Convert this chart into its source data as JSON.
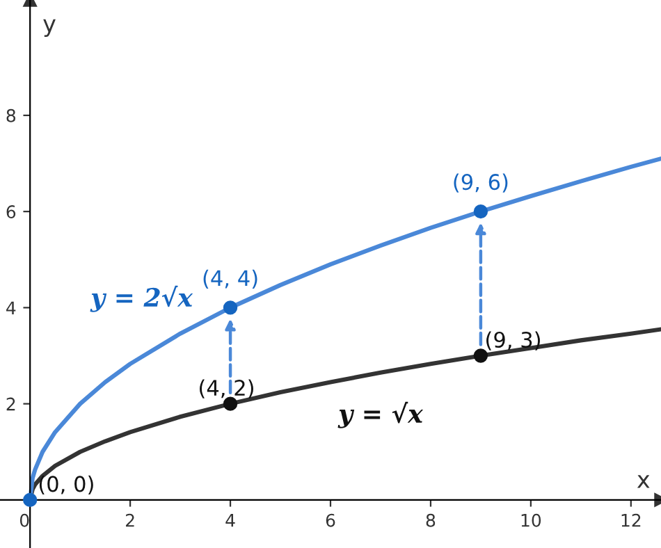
{
  "chart_data": {
    "type": "line",
    "xlabel": "x",
    "ylabel": "y",
    "xlim": [
      -0.6,
      12.6
    ],
    "ylim": [
      -1.0,
      10.4
    ],
    "xticks": [
      0,
      2,
      4,
      6,
      8,
      10,
      12
    ],
    "yticks": [
      {
        "value": 0,
        "label": null
      },
      2,
      4,
      6,
      8
    ],
    "grid": false,
    "series": [
      {
        "name": "y = √x",
        "color": "#333333",
        "x": [
          0,
          0.05,
          0.1,
          0.25,
          0.5,
          1,
          1.5,
          2,
          3,
          4,
          5,
          6,
          7,
          8,
          9,
          10,
          11,
          12,
          12.6
        ],
        "values": [
          0,
          0.22,
          0.32,
          0.5,
          0.71,
          1,
          1.22,
          1.41,
          1.73,
          2,
          2.24,
          2.45,
          2.65,
          2.83,
          3,
          3.16,
          3.32,
          3.46,
          3.55
        ]
      },
      {
        "name": "y = 2√x",
        "color": "#4a88d8",
        "x": [
          0,
          0.05,
          0.1,
          0.25,
          0.5,
          1,
          1.5,
          2,
          3,
          4,
          5,
          6,
          7,
          8,
          9,
          10,
          11,
          12,
          12.6
        ],
        "values": [
          0,
          0.45,
          0.63,
          1,
          1.41,
          2,
          2.45,
          2.83,
          3.46,
          4,
          4.47,
          4.9,
          5.29,
          5.66,
          6,
          6.32,
          6.63,
          6.93,
          7.1
        ]
      },
      {
        "type": "scatter",
        "color": "#111111",
        "marker": "circle",
        "x": [
          4,
          9
        ],
        "values": [
          2,
          3
        ]
      },
      {
        "type": "scatter",
        "color": "#1565c0",
        "marker": "circle",
        "x": [
          0,
          4,
          9
        ],
        "values": [
          0,
          4,
          6
        ]
      }
    ],
    "annotations": [
      {
        "text": "(0, 0)",
        "x": 0,
        "y": 0
      },
      {
        "text": "(4, 2)",
        "x": 4,
        "y": 2
      },
      {
        "text": "(9, 3)",
        "x": 9,
        "y": 3
      },
      {
        "text": "(4, 4)",
        "x": 4,
        "y": 4
      },
      {
        "text": "(9, 6)",
        "x": 9,
        "y": 6
      }
    ]
  }
}
